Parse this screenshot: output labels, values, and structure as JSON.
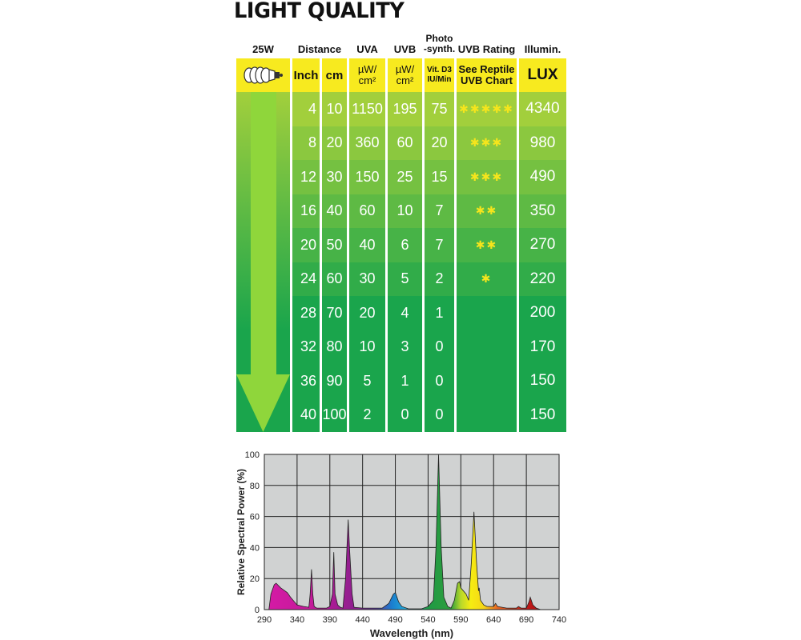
{
  "title": "LIGHT QUALITY",
  "table": {
    "headers": {
      "wattage": "25W",
      "distance": "Distance",
      "uva": "UVA",
      "uvb": "UVB",
      "photo": "Photo\n-synth.",
      "rating": "UVB Rating",
      "illumin": "Illumin."
    },
    "subheaders": {
      "bulb_icon": "spiral-bulb-icon",
      "inch": "Inch",
      "cm": "cm",
      "uva_unit": "µW/\ncm²",
      "uvb_unit": "µW/\ncm²",
      "photo_unit": "Vit. D3\nIU/Min",
      "rating_note": "See Reptile\nUVB Chart",
      "lux": "LUX"
    },
    "rows": [
      {
        "inch": "4",
        "cm": "10",
        "uva": "1150",
        "uvb": "195",
        "vitd3": "75",
        "stars": 5,
        "lux": "4340"
      },
      {
        "inch": "8",
        "cm": "20",
        "uva": "360",
        "uvb": "60",
        "vitd3": "20",
        "stars": 3,
        "lux": "980"
      },
      {
        "inch": "12",
        "cm": "30",
        "uva": "150",
        "uvb": "25",
        "vitd3": "15",
        "stars": 3,
        "lux": "490"
      },
      {
        "inch": "16",
        "cm": "40",
        "uva": "60",
        "uvb": "10",
        "vitd3": "7",
        "stars": 2,
        "lux": "350"
      },
      {
        "inch": "20",
        "cm": "50",
        "uva": "40",
        "uvb": "6",
        "vitd3": "7",
        "stars": 2,
        "lux": "270"
      },
      {
        "inch": "24",
        "cm": "60",
        "uva": "30",
        "uvb": "5",
        "vitd3": "2",
        "stars": 1,
        "lux": "220"
      },
      {
        "inch": "28",
        "cm": "70",
        "uva": "20",
        "uvb": "4",
        "vitd3": "1",
        "stars": 0,
        "lux": "200"
      },
      {
        "inch": "32",
        "cm": "80",
        "uva": "10",
        "uvb": "3",
        "vitd3": "0",
        "stars": 0,
        "lux": "170"
      },
      {
        "inch": "36",
        "cm": "90",
        "uva": "5",
        "uvb": "1",
        "vitd3": "0",
        "stars": 0,
        "lux": "150"
      },
      {
        "inch": "40",
        "cm": "100",
        "uva": "2",
        "uvb": "0",
        "vitd3": "0",
        "stars": 0,
        "lux": "150"
      }
    ],
    "colors": {
      "header_yellow": "#f7ea1f",
      "row_top": "#a2cf3c",
      "row_bottom": "#1aa54c",
      "arrow": "#8fd63b",
      "star": "#f5e51c"
    }
  },
  "chart_data": {
    "type": "area",
    "xlabel": "Wavelength (nm)",
    "ylabel": "Relative Spectral Power (%)",
    "xlim": [
      290,
      740
    ],
    "ylim": [
      0,
      100
    ],
    "xticks": [
      290,
      340,
      390,
      440,
      490,
      540,
      590,
      640,
      690,
      740
    ],
    "yticks": [
      0,
      20,
      40,
      60,
      80,
      100
    ],
    "grid": true,
    "background": "#d0d2d2",
    "x": [
      290,
      297,
      300,
      305,
      308,
      315,
      325,
      330,
      340,
      350,
      358,
      360,
      362,
      364,
      366,
      370,
      385,
      390,
      394,
      396,
      398,
      402,
      406,
      410,
      414,
      418,
      420,
      424,
      427,
      440,
      470,
      480,
      487,
      490,
      495,
      500,
      510,
      530,
      540,
      548,
      552,
      556,
      560,
      564,
      570,
      575,
      580,
      585,
      588,
      590,
      598,
      602,
      606,
      610,
      614,
      617,
      618,
      620,
      625,
      630,
      640,
      643,
      646,
      660,
      675,
      678,
      682,
      690,
      694,
      696,
      700,
      705,
      712,
      740
    ],
    "y": [
      0,
      0,
      10,
      16,
      17,
      14,
      11,
      8,
      3,
      2,
      1.5,
      10,
      26,
      10,
      2,
      1,
      1,
      2,
      10,
      37,
      10,
      3,
      1.5,
      1,
      20,
      58,
      40,
      10,
      1.5,
      1,
      1,
      4,
      10,
      11,
      5,
      2,
      0.5,
      0.5,
      2,
      6,
      40,
      100,
      40,
      8,
      2,
      1,
      6,
      17,
      18,
      14,
      10,
      6,
      30,
      63,
      30,
      12,
      14,
      6,
      3,
      2,
      2,
      4,
      2,
      1,
      1,
      2,
      1,
      1,
      5,
      8,
      3,
      1,
      0,
      0
    ],
    "spectrum_colors": [
      {
        "nm": 290,
        "color": "#d61aa6"
      },
      {
        "nm": 360,
        "color": "#c41a9a"
      },
      {
        "nm": 430,
        "color": "#8c1f8e"
      },
      {
        "nm": 460,
        "color": "#5a3aa0"
      },
      {
        "nm": 485,
        "color": "#1a7fd0"
      },
      {
        "nm": 505,
        "color": "#22a8d8"
      },
      {
        "nm": 540,
        "color": "#1f9a45"
      },
      {
        "nm": 575,
        "color": "#2e9e3c"
      },
      {
        "nm": 590,
        "color": "#b8d82a"
      },
      {
        "nm": 605,
        "color": "#f6ec12"
      },
      {
        "nm": 625,
        "color": "#f5d616"
      },
      {
        "nm": 645,
        "color": "#e86a24"
      },
      {
        "nm": 690,
        "color": "#c01818"
      },
      {
        "nm": 740,
        "color": "#a01010"
      }
    ]
  }
}
